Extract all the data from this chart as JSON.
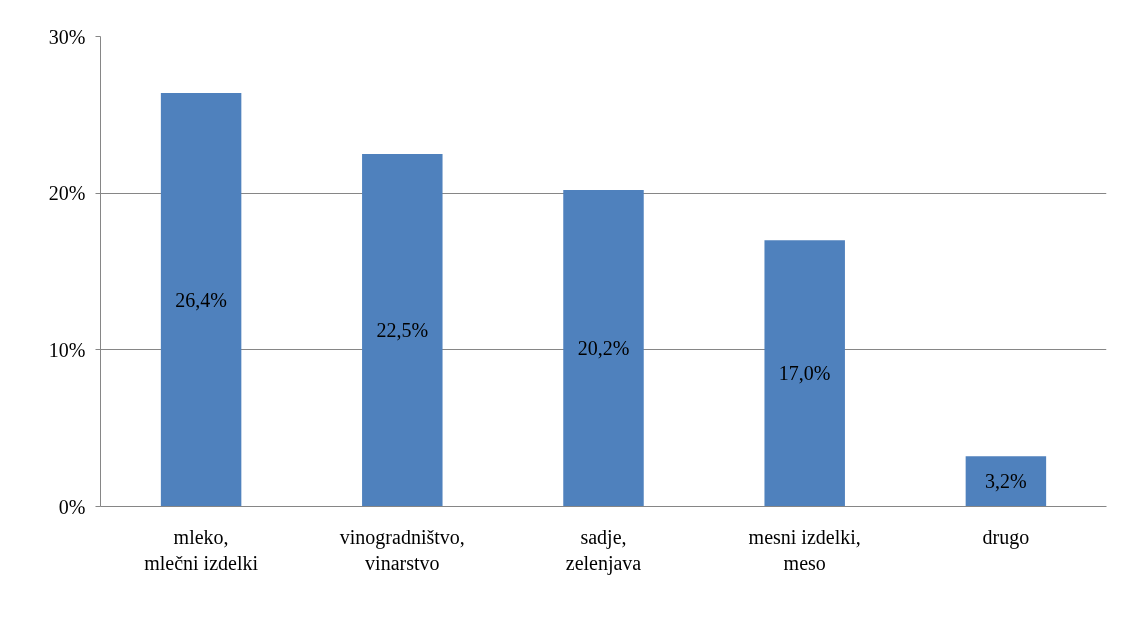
{
  "chart_data": {
    "type": "bar",
    "categories": [
      "mleko,\nmlečni izdelki",
      "vinogradništvo,\nvinarstvo",
      "sadje,\nzelenjava",
      "mesni izdelki,\nmeso",
      "drugo"
    ],
    "values": [
      26.4,
      22.5,
      20.2,
      17.0,
      3.2
    ],
    "value_labels": [
      "26,4%",
      "22,5%",
      "20,2%",
      "17,0%",
      "3,2%"
    ],
    "color": "#4f81bd",
    "ylim": [
      0,
      30
    ],
    "yticks": [
      {
        "value": 0,
        "label": "0%"
      },
      {
        "value": 10,
        "label": "10%"
      },
      {
        "value": 20,
        "label": "20%"
      },
      {
        "value": 30,
        "label": "30%"
      }
    ],
    "grid": "y"
  }
}
